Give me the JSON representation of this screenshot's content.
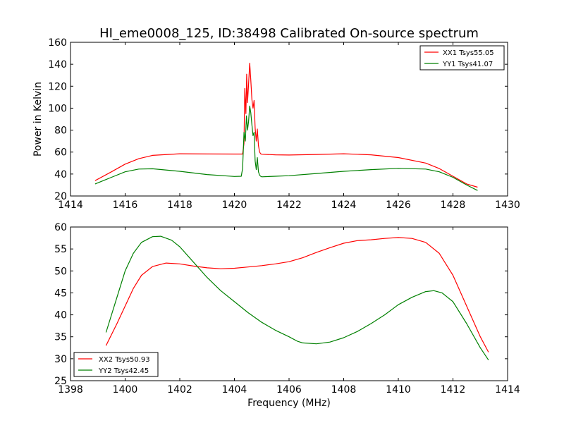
{
  "chart_data": [
    {
      "type": "line",
      "title": "HI_eme0008_125, ID:38498 Calibrated On-source spectrum",
      "xlabel": "",
      "ylabel": "Power in Kelvin",
      "xlim": [
        1414,
        1430
      ],
      "ylim": [
        20,
        160
      ],
      "xticks": [
        "1414",
        "1416",
        "1418",
        "1420",
        "1422",
        "1424",
        "1426",
        "1428",
        "1430"
      ],
      "yticks": [
        "20",
        "40",
        "60",
        "80",
        "100",
        "120",
        "140",
        "160"
      ],
      "legend_position": "top-right",
      "grid": false,
      "series": [
        {
          "name": "XX1 Tsys55.05",
          "color": "#ff0000",
          "x": [
            1414.9,
            1415.5,
            1416.0,
            1416.5,
            1417.0,
            1418.0,
            1419.0,
            1420.0,
            1420.3,
            1420.35,
            1420.38,
            1420.42,
            1420.45,
            1420.48,
            1420.52,
            1420.56,
            1420.6,
            1420.64,
            1420.68,
            1420.72,
            1420.76,
            1420.8,
            1420.84,
            1420.88,
            1420.92,
            1420.96,
            1421.0,
            1421.5,
            1422.0,
            1423.0,
            1424.0,
            1425.0,
            1426.0,
            1427.0,
            1427.5,
            1428.0,
            1428.5,
            1428.9
          ],
          "y": [
            34,
            42,
            49,
            54,
            57,
            58.5,
            58.3,
            58.2,
            58.2,
            68,
            118,
            95,
            131,
            105,
            122,
            141,
            126,
            108,
            100,
            107,
            82,
            70,
            81,
            66,
            60,
            58.5,
            58,
            57.5,
            57.3,
            57.8,
            58.5,
            57.5,
            55,
            50,
            45,
            38,
            31,
            28
          ]
        },
        {
          "name": "YY1 Tsys41.07",
          "color": "#008000",
          "x": [
            1414.9,
            1415.5,
            1416.0,
            1416.5,
            1417.0,
            1418.0,
            1419.0,
            1420.0,
            1420.25,
            1420.3,
            1420.35,
            1420.4,
            1420.44,
            1420.48,
            1420.52,
            1420.56,
            1420.6,
            1420.64,
            1420.68,
            1420.72,
            1420.76,
            1420.8,
            1420.84,
            1420.88,
            1420.92,
            1420.96,
            1421.0,
            1421.5,
            1422.0,
            1423.0,
            1424.0,
            1425.0,
            1426.0,
            1427.0,
            1427.5,
            1428.0,
            1428.5,
            1428.9
          ],
          "y": [
            31,
            37,
            42,
            44.5,
            44.8,
            42.5,
            39.5,
            37.8,
            38,
            45,
            78,
            70,
            93,
            80,
            88,
            102,
            96,
            85,
            75,
            78,
            52,
            44,
            55,
            42,
            39,
            38,
            37.5,
            38,
            38.5,
            40.5,
            42.5,
            44,
            45.2,
            44.5,
            42,
            37,
            30,
            25
          ]
        }
      ]
    },
    {
      "type": "line",
      "title": "",
      "xlabel": "Frequency (MHz)",
      "ylabel": "",
      "xlim": [
        1398,
        1414
      ],
      "ylim": [
        25,
        60
      ],
      "xticks": [
        "1398",
        "1400",
        "1402",
        "1404",
        "1406",
        "1408",
        "1410",
        "1412",
        "1414"
      ],
      "yticks": [
        "25",
        "30",
        "35",
        "40",
        "45",
        "50",
        "55",
        "60"
      ],
      "legend_position": "bottom-left",
      "grid": false,
      "series": [
        {
          "name": "XX2 Tsys50.93",
          "color": "#ff0000",
          "x": [
            1399.3,
            1399.7,
            1400.0,
            1400.3,
            1400.6,
            1401.0,
            1401.5,
            1402.0,
            1402.5,
            1403.0,
            1403.5,
            1404.0,
            1404.5,
            1405.0,
            1405.5,
            1406.0,
            1406.5,
            1407.0,
            1407.5,
            1408.0,
            1408.5,
            1409.0,
            1409.5,
            1410.0,
            1410.5,
            1411.0,
            1411.5,
            1412.0,
            1412.5,
            1413.0,
            1413.3
          ],
          "y": [
            33,
            38,
            42,
            46,
            49,
            51,
            51.8,
            51.6,
            51.1,
            50.7,
            50.5,
            50.6,
            50.9,
            51.2,
            51.6,
            52.1,
            53,
            54.2,
            55.3,
            56.3,
            56.9,
            57.1,
            57.4,
            57.6,
            57.4,
            56.5,
            54,
            49,
            42,
            35,
            31.5
          ]
        },
        {
          "name": "YY2 Tsys42.45",
          "color": "#008000",
          "x": [
            1399.3,
            1399.7,
            1400.0,
            1400.3,
            1400.6,
            1401.0,
            1401.3,
            1401.7,
            1402.0,
            1402.5,
            1403.0,
            1403.5,
            1404.0,
            1404.5,
            1405.0,
            1405.5,
            1406.0,
            1406.3,
            1406.5,
            1407.0,
            1407.5,
            1408.0,
            1408.5,
            1409.0,
            1409.5,
            1410.0,
            1410.5,
            1411.0,
            1411.3,
            1411.6,
            1412.0,
            1412.5,
            1413.0,
            1413.3
          ],
          "y": [
            36,
            44,
            50,
            54,
            56.5,
            57.8,
            57.9,
            57,
            55.5,
            52,
            48.5,
            45.5,
            43,
            40.5,
            38.3,
            36.5,
            35,
            34,
            33.6,
            33.4,
            33.8,
            34.8,
            36.2,
            38,
            40,
            42.3,
            44,
            45.3,
            45.5,
            45,
            43,
            38,
            32.5,
            29.7
          ]
        }
      ]
    }
  ]
}
